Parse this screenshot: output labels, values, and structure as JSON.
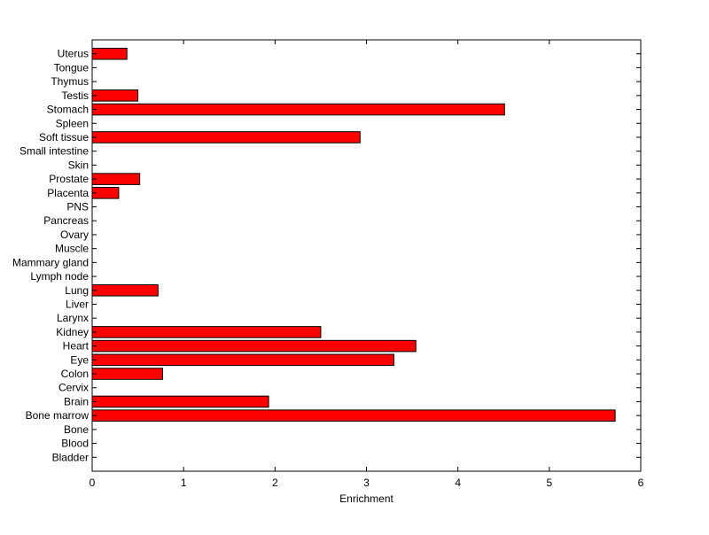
{
  "chart_data": {
    "type": "bar",
    "orientation": "horizontal",
    "title": "",
    "xlabel": "Enrichment",
    "ylabel": "",
    "xlim": [
      0,
      6
    ],
    "xticks": [
      0,
      1,
      2,
      3,
      4,
      5,
      6
    ],
    "grid": false,
    "bar_color": "#ff0000",
    "bar_edge_color": "#000000",
    "categories": [
      "Bladder",
      "Blood",
      "Bone",
      "Bone marrow",
      "Brain",
      "Cervix",
      "Colon",
      "Eye",
      "Heart",
      "Kidney",
      "Larynx",
      "Liver",
      "Lung",
      "Lymph node",
      "Mammary gland",
      "Muscle",
      "Ovary",
      "Pancreas",
      "PNS",
      "Placenta",
      "Prostate",
      "Skin",
      "Small intestine",
      "Soft tissue",
      "Spleen",
      "Stomach",
      "Testis",
      "Thymus",
      "Tongue",
      "Uterus"
    ],
    "values": [
      0,
      0,
      0,
      5.72,
      1.93,
      0,
      0.77,
      3.3,
      3.54,
      2.5,
      0,
      0,
      0.72,
      0,
      0,
      0,
      0,
      0,
      0,
      0.29,
      0.52,
      0,
      0,
      2.93,
      0,
      4.51,
      0.5,
      0,
      0,
      0.38
    ]
  }
}
